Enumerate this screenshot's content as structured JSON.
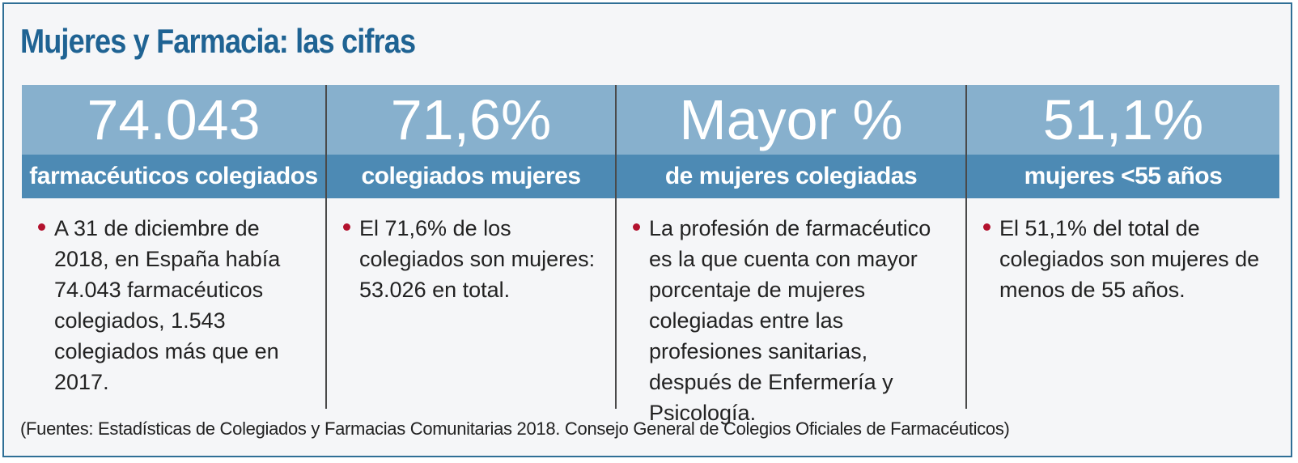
{
  "title": "Mujeres y Farmacia: las cifras",
  "columns": [
    {
      "big": "74.043",
      "sub": "farmacéuticos colegiados",
      "text": "A 31 de diciembre de 2018, en España había 74.043 farmacéuticos colegiados, 1.543 colegiados más que en 2017."
    },
    {
      "big": "71,6%",
      "sub": "colegiados mujeres",
      "text": "El 71,6% de los colegiados son mujeres: 53.026 en total."
    },
    {
      "big": "Mayor %",
      "sub": "de mujeres colegiadas",
      "text": "La profesión de farmacéutico es la que cuenta con mayor porcentaje de mujeres colegiadas entre las profesiones sanitarias, después de Enfermería y Psicología."
    },
    {
      "big": "51,1%",
      "sub": "mujeres <55 años",
      "text": "El 51,1% del total de colegiados son mujeres de menos de 55 años."
    }
  ],
  "footer": "(Fuentes: Estadísticas de Colegiados y Farmacias Comunitarias 2018. Consejo General de Colegios Oficiales de Farmacéuticos)",
  "colors": {
    "title": "#1f6393",
    "big_band": "#87b0cd",
    "sub_band": "#4d8ab4",
    "bullet": "#b3122e",
    "border": "#2f6f96"
  }
}
